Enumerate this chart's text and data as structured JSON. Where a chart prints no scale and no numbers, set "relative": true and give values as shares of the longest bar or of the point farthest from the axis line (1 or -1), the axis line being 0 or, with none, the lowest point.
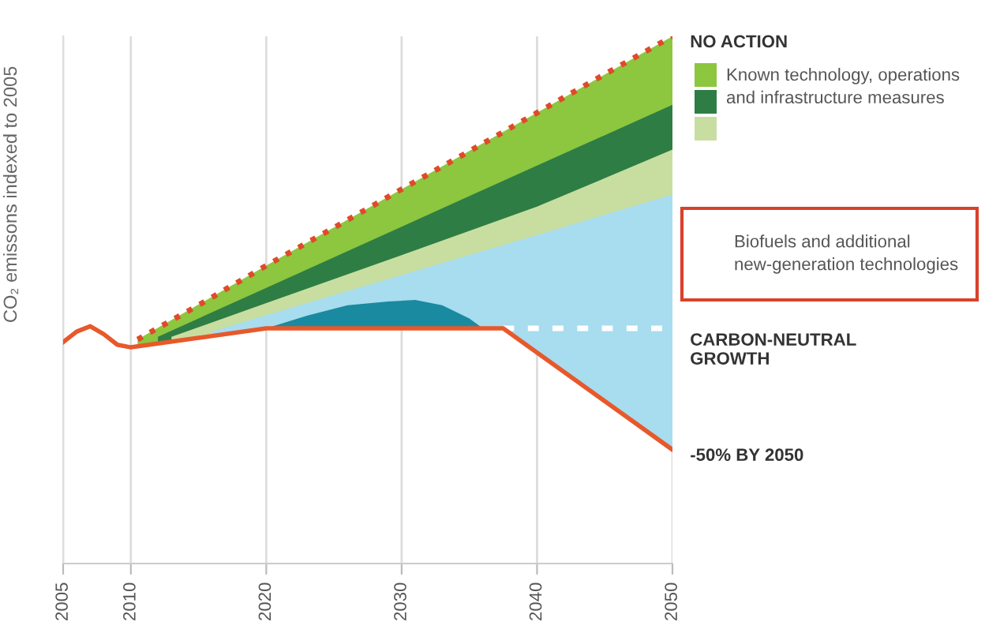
{
  "chart_data": {
    "type": "area",
    "relative": true,
    "ylabel": "CO₂ emissons indexed to 2005",
    "xlim": [
      2005,
      2050
    ],
    "xticks": [
      2005,
      2010,
      2020,
      2030,
      2040,
      2050
    ],
    "grid": "x",
    "tick_labels": "x",
    "annotations": [
      "Biofuels and additional\nnew-generation technologies"
    ],
    "series": [
      {
        "name": "Known technology, operations\nand infrastructure measures",
        "color": "#8dc63f",
        "x": [
          2010.5,
          2020,
          2030,
          2040,
          2050
        ],
        "values": [
          0.425,
          0.565,
          0.71,
          0.855,
          1.0
        ]
      },
      {
        "color": "#2e7d45",
        "x": [
          2012,
          2020,
          2030,
          2040,
          2050
        ],
        "values": [
          0.43,
          0.523,
          0.639,
          0.755,
          0.87
        ]
      },
      {
        "color": "#c8dea0",
        "x": [
          2013,
          2020,
          2030,
          2040,
          2050
        ],
        "values": [
          0.43,
          0.494,
          0.585,
          0.677,
          0.785
        ]
      },
      {
        "type": "line",
        "name": "NO ACTION",
        "color": "#e04a2a",
        "line_style": "dotted",
        "x": [
          2010.5,
          2015,
          2020,
          2025,
          2030,
          2035,
          2040,
          2045,
          2050
        ],
        "values": [
          0.425,
          0.49,
          0.565,
          0.637,
          0.71,
          0.782,
          0.855,
          0.928,
          1.0
        ]
      },
      {
        "color": "#a8dcef",
        "x": [
          2016,
          2020,
          2030,
          2040,
          2050
        ],
        "values": [
          0.44,
          0.471,
          0.547,
          0.623,
          0.7
        ]
      },
      {
        "color": "#1a8aa0",
        "x": [
          2020,
          2023,
          2026,
          2029,
          2031,
          2033,
          2035,
          2036
        ],
        "values": [
          0.446,
          0.47,
          0.49,
          0.497,
          0.5,
          0.49,
          0.465,
          0.446
        ]
      },
      {
        "type": "line",
        "name": "CARBON-NEUTRAL\nGROWTH",
        "color": "#ffffff",
        "line_style": "dashed",
        "x": [
          2037.5,
          2040,
          2045,
          2050
        ],
        "values": [
          0.446,
          0.446,
          0.446,
          0.446
        ]
      },
      {
        "type": "line",
        "name": "-50% BY 2050",
        "color": "#e8582a",
        "line_style": "solid",
        "x": [
          2005,
          2006,
          2007,
          2008,
          2009,
          2010,
          2015,
          2020,
          2025,
          2030,
          2037.5,
          2040,
          2045,
          2050
        ],
        "values": [
          0.42,
          0.44,
          0.45,
          0.435,
          0.415,
          0.41,
          0.428,
          0.446,
          0.446,
          0.446,
          0.446,
          0.4,
          0.308,
          0.216
        ]
      }
    ]
  }
}
